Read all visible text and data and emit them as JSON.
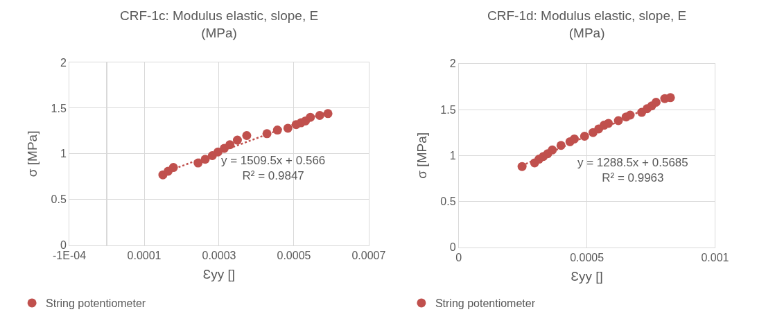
{
  "chart_data": [
    {
      "type": "scatter",
      "title": "CRF-1c: Modulus elastic, slope, E (MPa)",
      "xlabel": "Ɛyy []",
      "ylabel": "σ [MPa]",
      "xlim": [
        -0.0001,
        0.0007
      ],
      "xticks": [
        {
          "value": -0.0001,
          "label": "-1E-04"
        },
        0.0001,
        0.0003,
        0.0005,
        0.0007
      ],
      "ylim": [
        0,
        2
      ],
      "yticks": [
        0,
        0.5,
        1,
        1.5,
        2
      ],
      "grid": true,
      "legend": "bottom left",
      "marker": "circle",
      "annotations": [
        "y = 1509.5x + 0.566",
        "R² = 0.9847"
      ],
      "series": [
        {
          "name": "String potentiometer",
          "color": "#c0504d",
          "x": [
            0.00015,
            0.000164,
            0.000178,
            0.000244,
            0.000263,
            0.000282,
            0.000297,
            0.000314,
            0.000329,
            0.000349,
            0.000374,
            0.000428,
            0.000456,
            0.000484,
            0.000506,
            0.000519,
            0.000531,
            0.000544,
            0.000569,
            0.000591
          ],
          "values": [
            0.77,
            0.81,
            0.85,
            0.9,
            0.94,
            0.98,
            1.02,
            1.06,
            1.1,
            1.15,
            1.2,
            1.22,
            1.26,
            1.28,
            1.32,
            1.34,
            1.36,
            1.4,
            1.42,
            1.44
          ]
        },
        {
          "type": "line",
          "line_style": "dotted",
          "marker": "none",
          "color": "#c0504d",
          "x": [
            0.00015,
            0.000591
          ],
          "values": [
            0.79,
            1.46
          ]
        }
      ]
    },
    {
      "type": "scatter",
      "title": "CRF-1d: Modulus elastic, slope, E (MPa)",
      "xlabel": "Ɛyy []",
      "ylabel": "σ [MPa]",
      "xlim": [
        0,
        0.001
      ],
      "xticks": [
        0,
        0.0005,
        0.001
      ],
      "ylim": [
        0,
        2
      ],
      "yticks": [
        0,
        0.5,
        1,
        1.5,
        2
      ],
      "grid": true,
      "legend": "bottom left",
      "marker": "circle",
      "annotations": [
        "y = 1288.5x + 0.5685",
        "R² = 0.9963"
      ],
      "series": [
        {
          "name": "String potentiometer",
          "color": "#c0504d",
          "x": [
            0.000247,
            0.000296,
            0.000313,
            0.00033,
            0.000347,
            0.000365,
            0.000399,
            0.000434,
            0.000451,
            0.000491,
            0.000524,
            0.000546,
            0.000567,
            0.000584,
            0.000623,
            0.000653,
            0.000669,
            0.000714,
            0.000735,
            0.000753,
            0.00077,
            0.000804,
            0.000826
          ],
          "values": [
            0.88,
            0.92,
            0.96,
            0.99,
            1.02,
            1.06,
            1.11,
            1.15,
            1.18,
            1.21,
            1.25,
            1.29,
            1.33,
            1.35,
            1.38,
            1.42,
            1.44,
            1.47,
            1.51,
            1.54,
            1.58,
            1.62,
            1.63
          ]
        },
        {
          "type": "line",
          "line_style": "dotted",
          "marker": "none",
          "color": "#c0504d",
          "x": [
            0.000247,
            0.000826
          ],
          "values": [
            0.89,
            1.63
          ]
        }
      ]
    }
  ]
}
